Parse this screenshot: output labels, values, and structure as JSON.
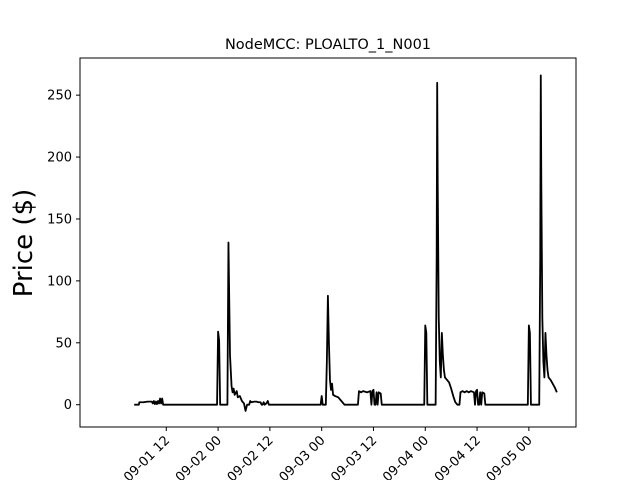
{
  "chart_data": {
    "type": "line",
    "title": "NodeMCC: PLOALTO_1_N001",
    "xlabel": "",
    "ylabel": "Price ($)",
    "ylim": [
      -18,
      280
    ],
    "yticks": [
      0,
      50,
      100,
      150,
      200,
      250
    ],
    "xlim": [
      0.667,
      5.455
    ],
    "xticks": [
      {
        "x": 1.5,
        "label": "09-01 12"
      },
      {
        "x": 2.0,
        "label": "09-02 00"
      },
      {
        "x": 2.5,
        "label": "09-02 12"
      },
      {
        "x": 3.0,
        "label": "09-03 00"
      },
      {
        "x": 3.5,
        "label": "09-03 12"
      },
      {
        "x": 4.0,
        "label": "09-04 00"
      },
      {
        "x": 4.5,
        "label": "09-04 12"
      },
      {
        "x": 5.0,
        "label": "09-05 00"
      }
    ],
    "grid": false,
    "series": [
      {
        "color": "#000000",
        "points": [
          [
            1.19,
            0
          ],
          [
            1.235,
            0
          ],
          [
            1.24,
            2
          ],
          [
            1.28,
            2
          ],
          [
            1.32,
            2.5
          ],
          [
            1.36,
            2.5
          ],
          [
            1.37,
            1
          ],
          [
            1.38,
            3
          ],
          [
            1.39,
            0.5
          ],
          [
            1.4,
            2.5
          ],
          [
            1.41,
            0.5
          ],
          [
            1.42,
            3
          ],
          [
            1.43,
            1
          ],
          [
            1.44,
            5
          ],
          [
            1.45,
            1
          ],
          [
            1.46,
            5
          ],
          [
            1.47,
            0
          ],
          [
            1.6,
            0
          ],
          [
            1.75,
            0
          ],
          [
            1.85,
            0
          ],
          [
            1.99,
            0
          ],
          [
            2.0,
            59
          ],
          [
            2.01,
            52
          ],
          [
            2.02,
            0
          ],
          [
            2.09,
            0
          ],
          [
            2.1,
            131
          ],
          [
            2.115,
            40
          ],
          [
            2.13,
            15
          ],
          [
            2.14,
            10
          ],
          [
            2.15,
            13
          ],
          [
            2.16,
            8
          ],
          [
            2.18,
            11
          ],
          [
            2.19,
            6
          ],
          [
            2.21,
            7
          ],
          [
            2.23,
            3
          ],
          [
            2.25,
            1
          ],
          [
            2.265,
            -5
          ],
          [
            2.28,
            0
          ],
          [
            2.3,
            0
          ],
          [
            2.31,
            3
          ],
          [
            2.32,
            2
          ],
          [
            2.35,
            2.5
          ],
          [
            2.37,
            2.5
          ],
          [
            2.39,
            2
          ],
          [
            2.41,
            2
          ],
          [
            2.42,
            0
          ],
          [
            2.43,
            0
          ],
          [
            2.44,
            2
          ],
          [
            2.45,
            0
          ],
          [
            2.465,
            1
          ],
          [
            2.48,
            3
          ],
          [
            2.49,
            0
          ],
          [
            2.6,
            0
          ],
          [
            2.75,
            0
          ],
          [
            2.99,
            0
          ],
          [
            3.0,
            7
          ],
          [
            3.01,
            0
          ],
          [
            3.04,
            0
          ],
          [
            3.05,
            35
          ],
          [
            3.06,
            88
          ],
          [
            3.07,
            50
          ],
          [
            3.08,
            20
          ],
          [
            3.09,
            12
          ],
          [
            3.1,
            17
          ],
          [
            3.11,
            8
          ],
          [
            3.13,
            7
          ],
          [
            3.16,
            6
          ],
          [
            3.19,
            3
          ],
          [
            3.22,
            0
          ],
          [
            3.3,
            0
          ],
          [
            3.35,
            0
          ],
          [
            3.36,
            11
          ],
          [
            3.38,
            10
          ],
          [
            3.4,
            11
          ],
          [
            3.44,
            10
          ],
          [
            3.47,
            11
          ],
          [
            3.48,
            0
          ],
          [
            3.49,
            11
          ],
          [
            3.5,
            12
          ],
          [
            3.51,
            0
          ],
          [
            3.52,
            0
          ],
          [
            3.53,
            10
          ],
          [
            3.54,
            0
          ],
          [
            3.55,
            10
          ],
          [
            3.57,
            9
          ],
          [
            3.58,
            0
          ],
          [
            3.7,
            0
          ],
          [
            3.85,
            0
          ],
          [
            3.99,
            0
          ],
          [
            4.0,
            64
          ],
          [
            4.01,
            58
          ],
          [
            4.02,
            0
          ],
          [
            4.1,
            0
          ],
          [
            4.11,
            120
          ],
          [
            4.115,
            260
          ],
          [
            4.12,
            180
          ],
          [
            4.13,
            70
          ],
          [
            4.14,
            35
          ],
          [
            4.15,
            22
          ],
          [
            4.16,
            58
          ],
          [
            4.17,
            40
          ],
          [
            4.18,
            28
          ],
          [
            4.19,
            22
          ],
          [
            4.21,
            20
          ],
          [
            4.23,
            18
          ],
          [
            4.25,
            13
          ],
          [
            4.27,
            7
          ],
          [
            4.29,
            2
          ],
          [
            4.31,
            0
          ],
          [
            4.33,
            0
          ],
          [
            4.34,
            10
          ],
          [
            4.36,
            11
          ],
          [
            4.38,
            10
          ],
          [
            4.4,
            11
          ],
          [
            4.42,
            10
          ],
          [
            4.44,
            11
          ],
          [
            4.47,
            10
          ],
          [
            4.48,
            0
          ],
          [
            4.49,
            11
          ],
          [
            4.5,
            12
          ],
          [
            4.51,
            0
          ],
          [
            4.52,
            0
          ],
          [
            4.53,
            10
          ],
          [
            4.54,
            0
          ],
          [
            4.55,
            10
          ],
          [
            4.57,
            9
          ],
          [
            4.58,
            0
          ],
          [
            4.7,
            0
          ],
          [
            4.85,
            0
          ],
          [
            4.99,
            0
          ],
          [
            5.0,
            64
          ],
          [
            5.01,
            58
          ],
          [
            5.02,
            0
          ],
          [
            5.1,
            0
          ],
          [
            5.11,
            120
          ],
          [
            5.115,
            266
          ],
          [
            5.12,
            180
          ],
          [
            5.13,
            70
          ],
          [
            5.14,
            35
          ],
          [
            5.15,
            22
          ],
          [
            5.16,
            58
          ],
          [
            5.17,
            40
          ],
          [
            5.18,
            28
          ],
          [
            5.19,
            22
          ],
          [
            5.21,
            20
          ],
          [
            5.23,
            17
          ],
          [
            5.25,
            14
          ],
          [
            5.26,
            12
          ],
          [
            5.27,
            10
          ]
        ]
      }
    ]
  }
}
